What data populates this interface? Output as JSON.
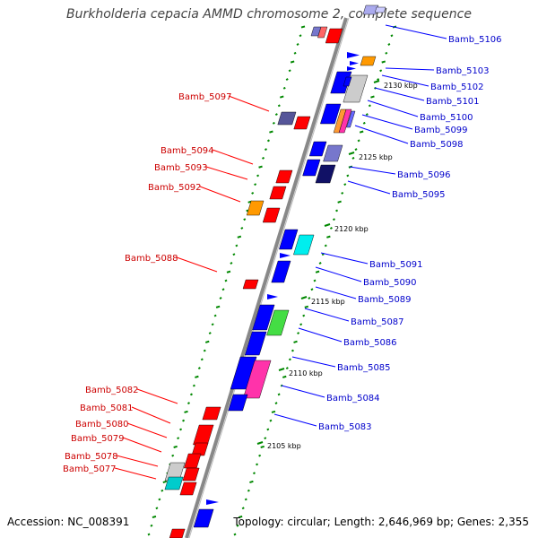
{
  "title": "Burkholderia cepacia AMMD chromosome 2, complete sequence",
  "footer": {
    "accession": "Accession: NC_008391",
    "topology": "Topology: circular; Length: 2,646,969 bp; Genes: 2,355"
  },
  "colors": {
    "minus_strand": "#ff0000",
    "plus_strand": "#0000ff",
    "backbone": "#808080",
    "gc_ticks": "#008800"
  },
  "kbp_marks": [
    "2105 kbp",
    "2110 kbp",
    "2115 kbp",
    "2120 kbp",
    "2125 kbp",
    "2130 kbp"
  ],
  "left_labels": [
    "Bamb_5097",
    "Bamb_5094",
    "Bamb_5093",
    "Bamb_5092",
    "Bamb_5088",
    "Bamb_5082",
    "Bamb_5081",
    "Bamb_5080",
    "Bamb_5079",
    "Bamb_5078",
    "Bamb_5077"
  ],
  "right_labels": [
    "Bamb_5106",
    "Bamb_5103",
    "Bamb_5102",
    "Bamb_5101",
    "Bamb_5100",
    "Bamb_5099",
    "Bamb_5098",
    "Bamb_5096",
    "Bamb_5095",
    "Bamb_5091",
    "Bamb_5090",
    "Bamb_5089",
    "Bamb_5087",
    "Bamb_5086",
    "Bamb_5085",
    "Bamb_5084",
    "Bamb_5083"
  ]
}
